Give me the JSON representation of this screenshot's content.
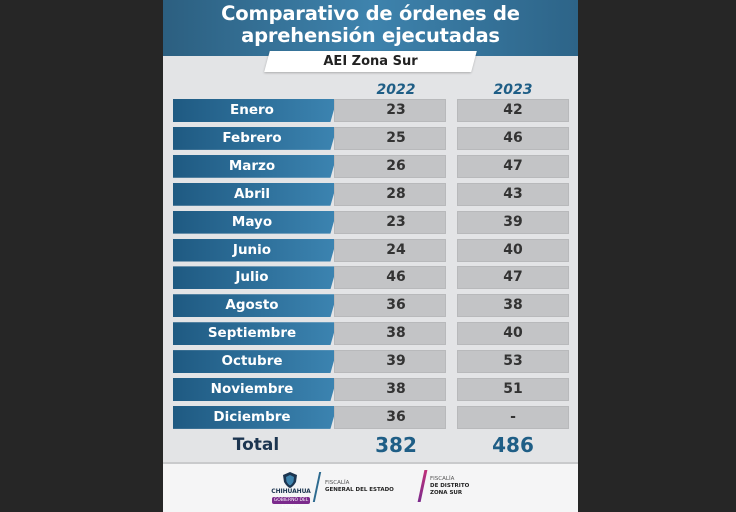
{
  "chart_data": {
    "type": "table",
    "title_line1": "Comparativo de órdenes de",
    "title_line2": "aprehensión ejecutadas",
    "subtitle": "AEI Zona Sur",
    "columns": [
      "2022",
      "2023"
    ],
    "rows": [
      {
        "month": "Enero",
        "v2022": "23",
        "v2023": "42"
      },
      {
        "month": "Febrero",
        "v2022": "25",
        "v2023": "46"
      },
      {
        "month": "Marzo",
        "v2022": "26",
        "v2023": "47"
      },
      {
        "month": "Abril",
        "v2022": "28",
        "v2023": "43"
      },
      {
        "month": "Mayo",
        "v2022": "23",
        "v2023": "39"
      },
      {
        "month": "Junio",
        "v2022": "24",
        "v2023": "40"
      },
      {
        "month": "Julio",
        "v2022": "46",
        "v2023": "47"
      },
      {
        "month": "Agosto",
        "v2022": "36",
        "v2023": "38"
      },
      {
        "month": "Septiembre",
        "v2022": "38",
        "v2023": "40"
      },
      {
        "month": "Octubre",
        "v2022": "39",
        "v2023": "53"
      },
      {
        "month": "Noviembre",
        "v2022": "38",
        "v2023": "51"
      },
      {
        "month": "Diciembre",
        "v2022": "36",
        "v2023": "-"
      }
    ],
    "total": {
      "label": "Total",
      "v2022": "382",
      "v2023": "486"
    }
  },
  "footer": {
    "logo_word": "CHIHUAHUA",
    "logo_tag": "GOBIERNO DEL ESTADO",
    "agency1_line1": "FISCALÍA",
    "agency1_line2": "GENERAL DEL ESTADO",
    "agency2_line1": "FISCALÍA",
    "agency2_line2": "DE DISTRITO",
    "agency2_line3": "ZONA SUR"
  },
  "colors": {
    "header_blue": "#2c5f80",
    "accent_blue": "#1f5e86",
    "cell_gray": "#c3c4c6",
    "footer_magenta": "#7b2a8c"
  }
}
